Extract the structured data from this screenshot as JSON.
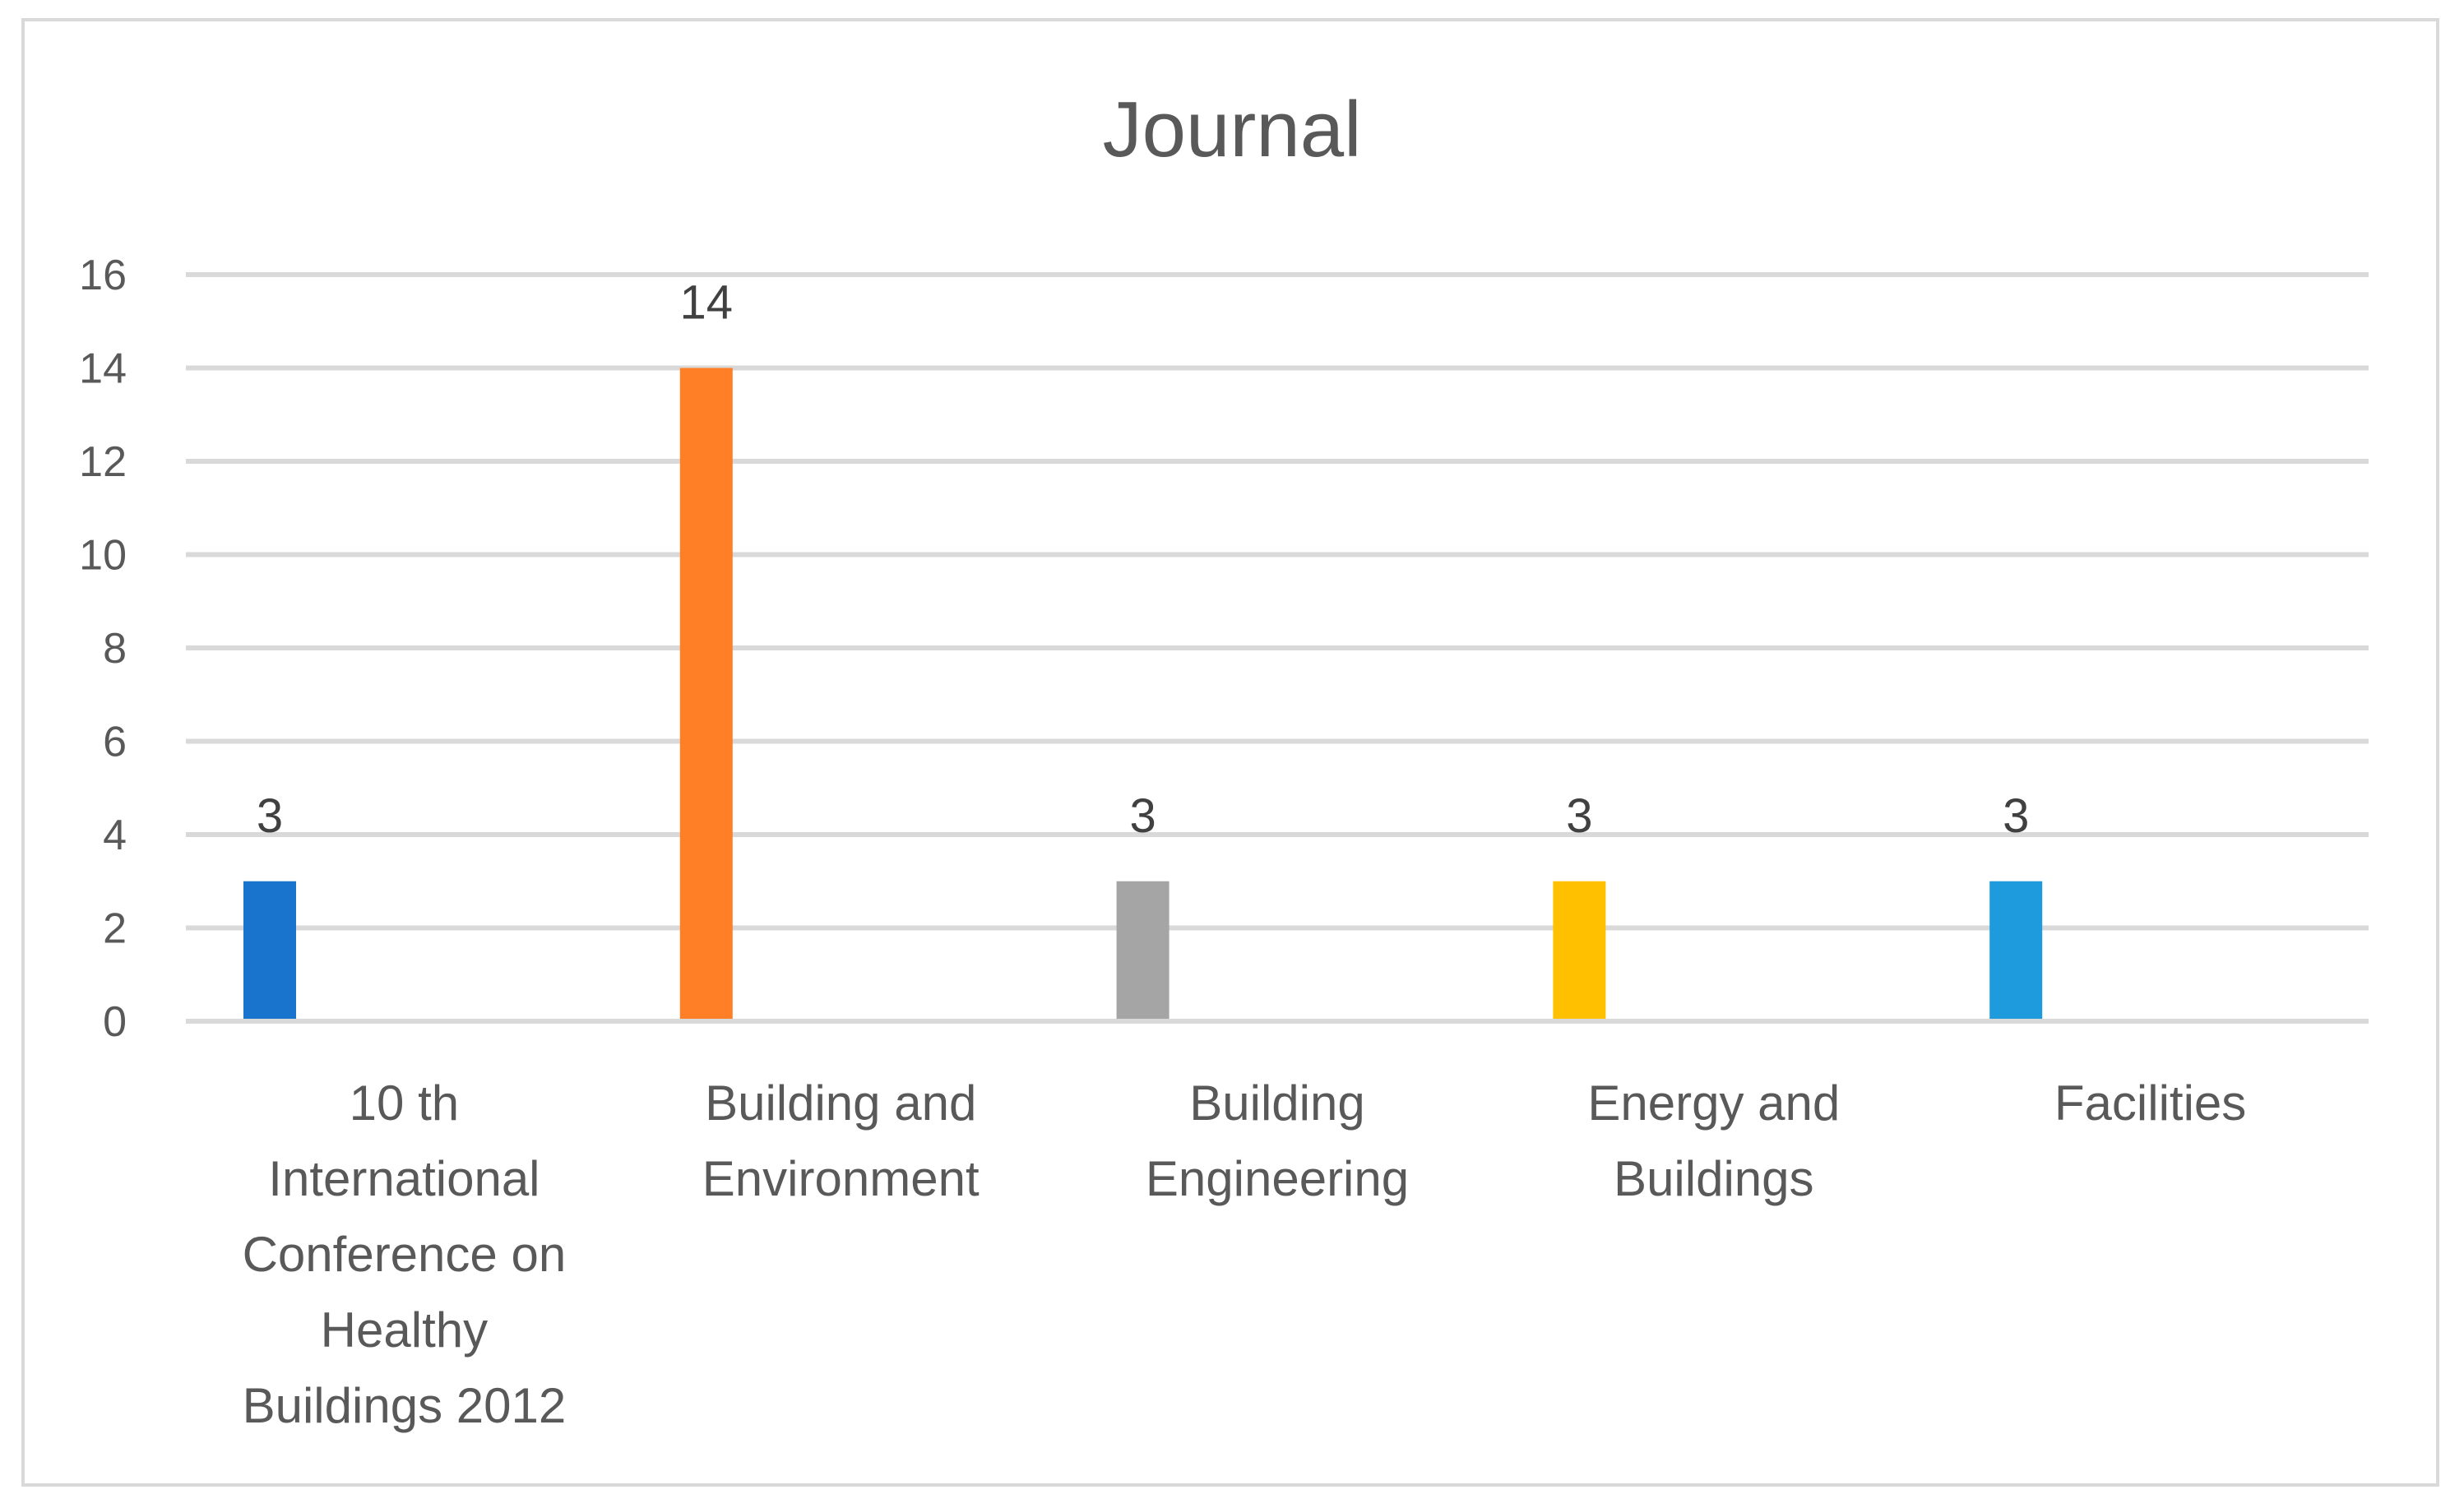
{
  "chart_data": {
    "type": "bar",
    "title": "Journal",
    "xlabel": "",
    "ylabel": "",
    "ylim": [
      0,
      16
    ],
    "yticks": [
      0,
      2,
      4,
      6,
      8,
      10,
      12,
      14,
      16
    ],
    "grid": true,
    "legend": "none",
    "categories": [
      "10 th International Conference on Healthy Buildings 2012",
      "Building and Environment",
      "Building Engineering",
      "Energy and Buildings",
      "Facilities"
    ],
    "category_lines": [
      [
        "10 th",
        "International",
        "Conference on",
        "Healthy",
        "Buildings 2012"
      ],
      [
        "Building and",
        "Environment"
      ],
      [
        "Building",
        "Engineering"
      ],
      [
        "Energy and",
        "Buildings"
      ],
      [
        "Facilities"
      ]
    ],
    "values": [
      3,
      14,
      3,
      3,
      3
    ],
    "data_labels": [
      "3",
      "14",
      "3",
      "3",
      "3"
    ],
    "colors": [
      "#1874cd",
      "#ff7f27",
      "#a5a5a5",
      "#ffc000",
      "#1e9bdc"
    ],
    "grid_color": "#d9d9d9",
    "text_color": "#595959"
  }
}
